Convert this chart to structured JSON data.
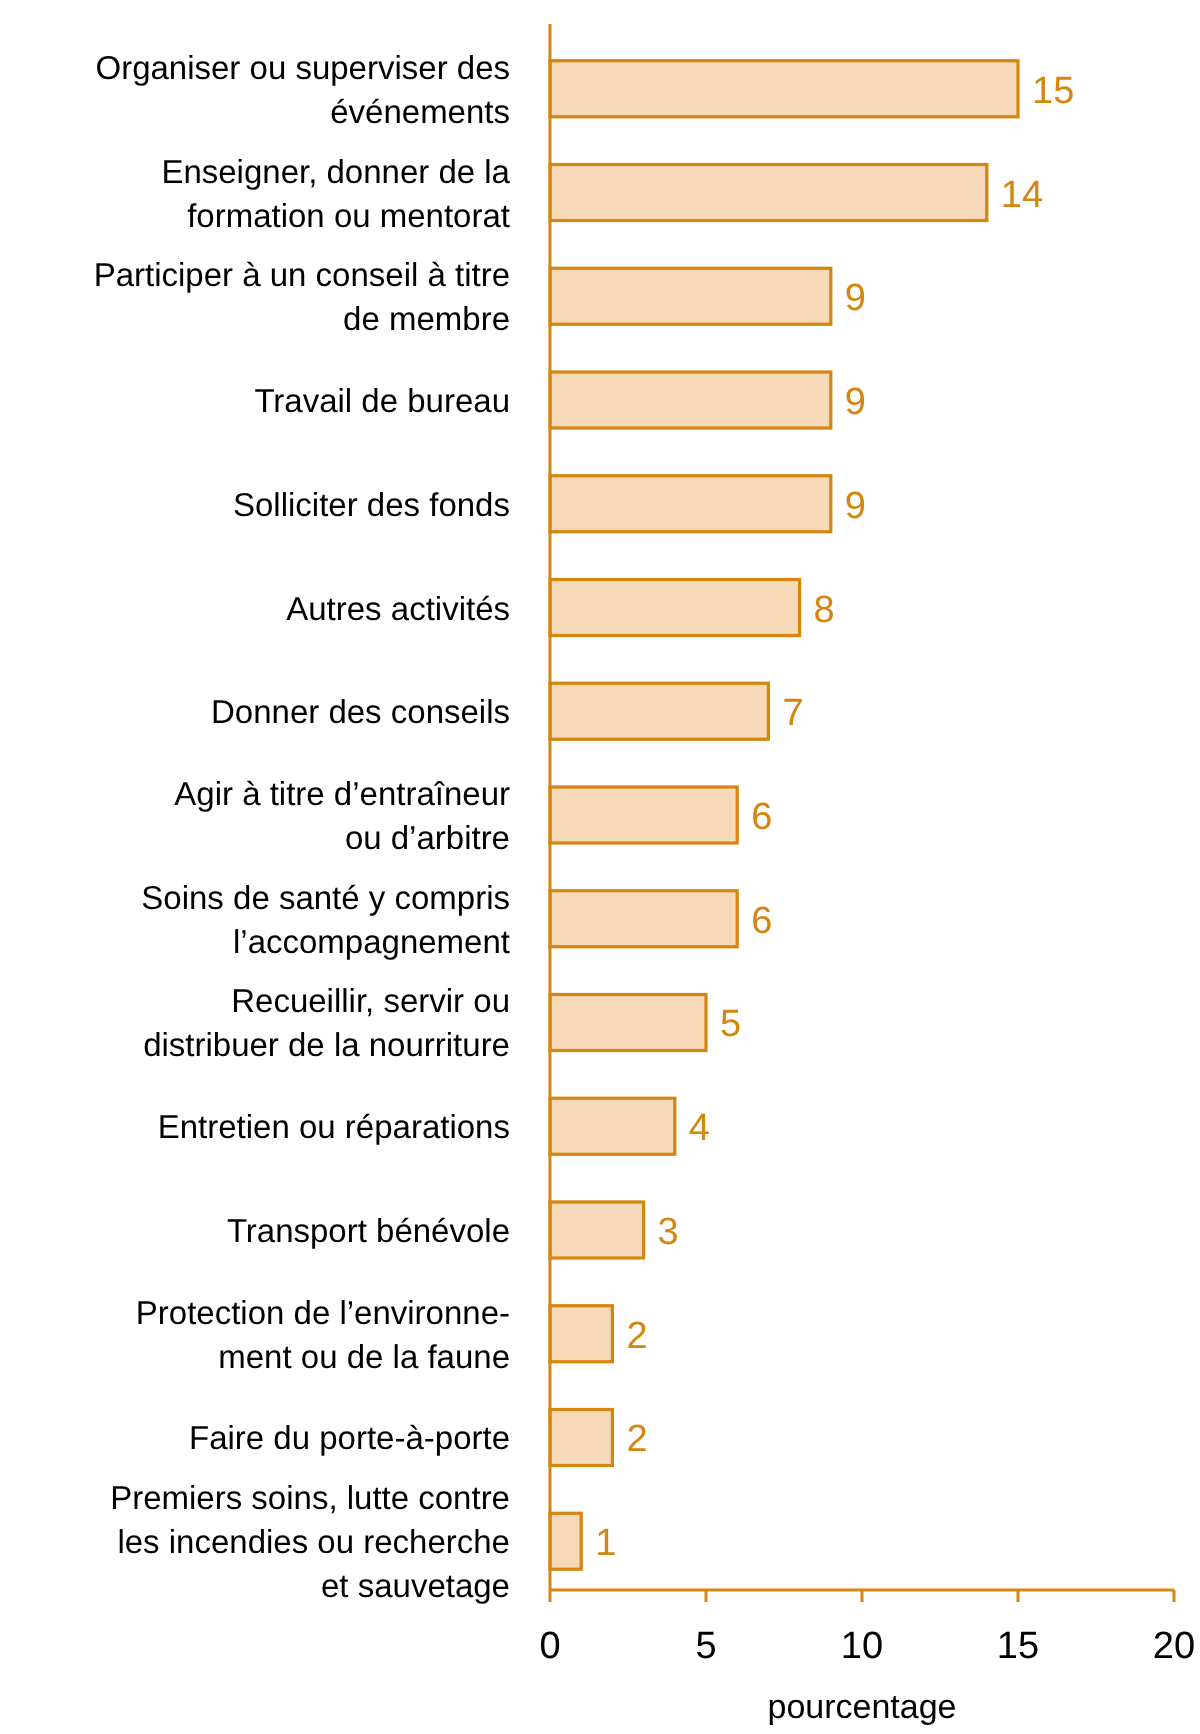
{
  "chart_data": {
    "type": "bar",
    "orientation": "horizontal",
    "xlabel": "pourcentage",
    "categories": [
      "Organiser ou superviser des\névénements",
      "Enseigner, donner de la\nformation ou mentorat",
      "Participer à un conseil à titre\nde membre",
      "Travail de bureau",
      "Solliciter des fonds",
      "Autres activités",
      "Donner des conseils",
      "Agir à titre d’entraîneur\nou d’arbitre",
      "Soins de santé y compris\nl’accompagnement",
      "Recueillir, servir ou\ndistribuer de la nourriture",
      "Entretien ou réparations",
      "Transport bénévole",
      "Protection de l’environne-\nment ou de la faune",
      "Faire du porte-à-porte",
      "Premiers soins, lutte contre\nles incendies ou recherche\net sauvetage"
    ],
    "values": [
      15,
      14,
      9,
      9,
      9,
      8,
      7,
      6,
      6,
      5,
      4,
      3,
      2,
      2,
      1
    ],
    "color": "#f5d9b8",
    "xlim": [
      0,
      20
    ],
    "xticks": [
      0,
      5,
      10,
      15,
      20
    ],
    "data_labels": true
  }
}
